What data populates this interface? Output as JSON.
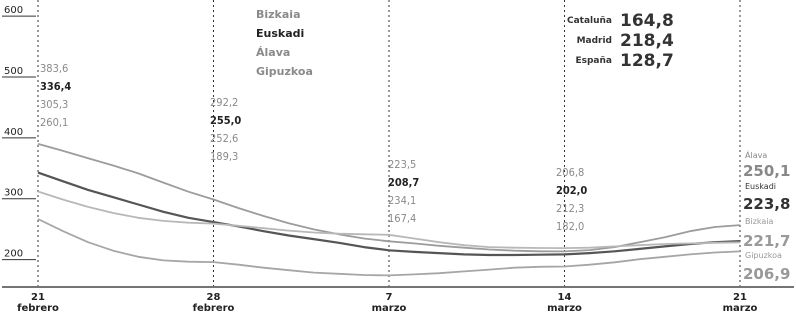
{
  "chart_data": {
    "type": "line",
    "ylim": [
      150,
      620
    ],
    "yticks": [
      200,
      300,
      400,
      500,
      600
    ],
    "x_labels": [
      {
        "day": "21",
        "month": "febrero",
        "index": 0
      },
      {
        "day": "28",
        "month": "febrero",
        "index": 7
      },
      {
        "day": "7",
        "month": "marzo",
        "index": 14
      },
      {
        "day": "14",
        "month": "marzo",
        "index": 21
      },
      {
        "day": "21",
        "month": "marzo",
        "index": 28
      }
    ],
    "legend": [
      "Bizkaia",
      "Euskadi",
      "Álava",
      "Gipuzkoa"
    ],
    "regional_values": [
      {
        "name": "Cataluña",
        "value": "164,8"
      },
      {
        "name": "Madrid",
        "value": "218,4"
      },
      {
        "name": "España",
        "value": "128,7"
      }
    ],
    "series": [
      {
        "name": "Álava",
        "color": "#9c9c9c",
        "values": [
          383.6,
          372,
          360,
          348,
          335,
          320,
          305,
          292.2,
          278,
          265,
          253,
          243,
          235,
          228,
          223.5,
          220,
          216,
          213,
          210,
          208,
          207,
          206.8,
          209,
          214,
          222,
          230,
          240,
          247,
          250.1
        ],
        "labels": [
          "383,6",
          "292,2",
          "223,5",
          "206,8",
          "250,1"
        ]
      },
      {
        "name": "Euskadi",
        "color": "#555555",
        "values": [
          336.4,
          322,
          308,
          296,
          284,
          272,
          262,
          255.0,
          248,
          240,
          233,
          227,
          221,
          214,
          208.7,
          206,
          204,
          202,
          201,
          201,
          201.5,
          202.0,
          204,
          207,
          211,
          215,
          219,
          222,
          223.8
        ],
        "labels": [
          "336,4",
          "255,0",
          "208,7",
          "202,0",
          "223,8"
        ]
      },
      {
        "name": "Bizkaia",
        "color": "#b8b8b8",
        "values": [
          305.3,
          292,
          280,
          270,
          262,
          257,
          254,
          252.6,
          249,
          245,
          241,
          238,
          236,
          235,
          234.1,
          228,
          222,
          217,
          214,
          213,
          212.5,
          212.3,
          213,
          215,
          217,
          219,
          220,
          221,
          221.7
        ],
        "labels": [
          "305,3",
          "252,6",
          "234,1",
          "212,3",
          "221,7"
        ]
      },
      {
        "name": "Gipuzkoa",
        "color": "#a6a6a6",
        "values": [
          260.1,
          240,
          222,
          208,
          198,
          192,
          190,
          189.3,
          185,
          180,
          176,
          172,
          170,
          168,
          167.4,
          169,
          171,
          174,
          177,
          180,
          181.5,
          182.0,
          185,
          189,
          194,
          198,
          202,
          205,
          206.9
        ],
        "labels": [
          "260,1",
          "189,3",
          "167,4",
          "182,0",
          "206,9"
        ]
      }
    ],
    "end_labels": [
      {
        "name": "Álava",
        "value": "250,1"
      },
      {
        "name": "Euskadi",
        "value": "223,8"
      },
      {
        "name": "Bizkaia",
        "value": "221,7"
      },
      {
        "name": "Gipuzkoa",
        "value": "206,9"
      }
    ]
  }
}
